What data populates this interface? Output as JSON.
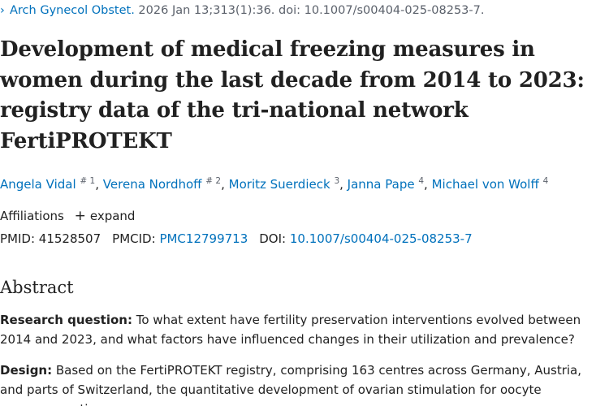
{
  "citation": {
    "chevron": "›",
    "journal": "Arch Gynecol Obstet.",
    "details": " 2026 Jan 13;313(1):36. doi: 10.1007/s00404-025-08253-7."
  },
  "title": "Development of medical freezing measures in women during the last decade from 2014 to 2023: registry data of the tri-national network FertiPROTEKT",
  "authors": [
    {
      "name": "Angela Vidal",
      "sup": "# 1"
    },
    {
      "name": "Verena Nordhoff",
      "sup": "# 2"
    },
    {
      "name": "Moritz Suerdieck",
      "sup": "3"
    },
    {
      "name": "Janna Pape",
      "sup": "4"
    },
    {
      "name": "Michael von Wolff",
      "sup": "4"
    }
  ],
  "affiliations": {
    "label": "Affiliations",
    "expand_icon": "+",
    "expand_label": "expand"
  },
  "identifiers": {
    "pmid_label": "PMID:",
    "pmid": "41528507",
    "pmcid_label": "PMCID:",
    "pmcid": "PMC12799713",
    "doi_label": "DOI:",
    "doi": "10.1007/s00404-025-08253-7"
  },
  "abstract": {
    "heading": "Abstract",
    "sections": [
      {
        "label": "Research question:",
        "text": " To what extent have fertility preservation interventions evolved between 2014 and 2023, and what factors have influenced changes in their utilization and prevalence?"
      },
      {
        "label": "Design:",
        "text": " Based on the FertiPROTEKT registry, comprising 163 centres across Germany, Austria, and parts of Switzerland, the quantitative development of ovarian stimulation for oocyte cryopreservation"
      }
    ]
  },
  "colors": {
    "link": "#0071bc",
    "text": "#212121",
    "muted": "#5b616b"
  }
}
